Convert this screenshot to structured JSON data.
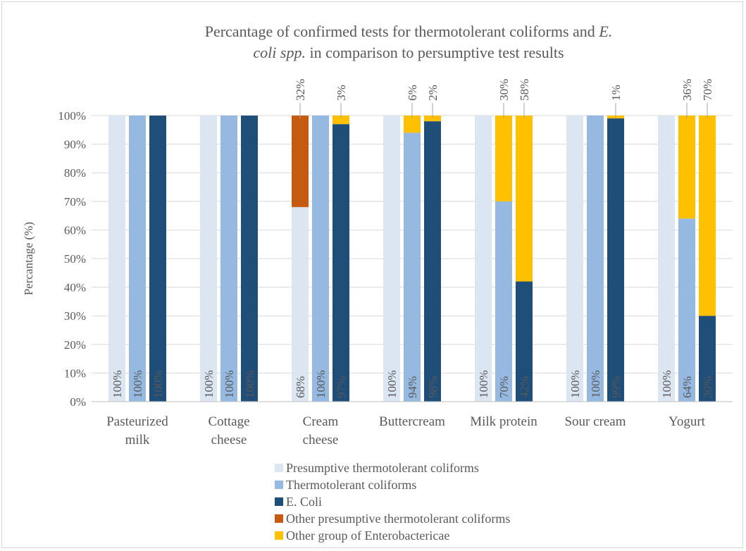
{
  "chart_data": {
    "type": "bar",
    "title_line1": "Percantage of confirmed tests for thermotolerant coliforms and ",
    "title_line1_italic": "E.",
    "title_line2_italic": "coli spp.",
    "title_line2": "  in comparison to persumptive test results",
    "ylabel": "Percantage (%)",
    "ylim": [
      0,
      100
    ],
    "yticks": [
      0,
      10,
      20,
      30,
      40,
      50,
      60,
      70,
      80,
      90,
      100
    ],
    "ytick_labels": [
      "0%",
      "10%",
      "20%",
      "30%",
      "40%",
      "50%",
      "60%",
      "70%",
      "80%",
      "90%",
      "100%"
    ],
    "categories": [
      [
        "Pasteurized",
        "milk"
      ],
      [
        "Cottage",
        "cheese"
      ],
      [
        "Cream",
        "cheese"
      ],
      [
        "Buttercream"
      ],
      [
        "Milk protein"
      ],
      [
        "Sour cream"
      ],
      [
        "Yogurt"
      ]
    ],
    "legend": [
      {
        "key": "presumptive",
        "label": "Presumptive thermotolerant coliforms",
        "color": "#dce6f2"
      },
      {
        "key": "thermo",
        "label": "Thermotolerant coliforms",
        "color": "#95b9e0"
      },
      {
        "key": "ecoli",
        "label": "E. Coli",
        "color": "#1f4e79"
      },
      {
        "key": "other_presumptive",
        "label": "Other presumptive thermotolerant coliforms",
        "color": "#c55a11"
      },
      {
        "key": "other_entero",
        "label": "Other group of Enterobactericae",
        "color": "#ffc000"
      }
    ],
    "groups": [
      {
        "bars": [
          {
            "segments": [
              {
                "key": "presumptive",
                "value": 100
              }
            ],
            "bottom_label": "100%",
            "top_label": ""
          },
          {
            "segments": [
              {
                "key": "thermo",
                "value": 100
              }
            ],
            "bottom_label": "100%",
            "top_label": ""
          },
          {
            "segments": [
              {
                "key": "ecoli",
                "value": 100
              }
            ],
            "bottom_label": "100%",
            "top_label": ""
          }
        ]
      },
      {
        "bars": [
          {
            "segments": [
              {
                "key": "presumptive",
                "value": 100
              }
            ],
            "bottom_label": "100%",
            "top_label": ""
          },
          {
            "segments": [
              {
                "key": "thermo",
                "value": 100
              }
            ],
            "bottom_label": "100%",
            "top_label": ""
          },
          {
            "segments": [
              {
                "key": "ecoli",
                "value": 100
              }
            ],
            "bottom_label": "100%",
            "top_label": ""
          }
        ]
      },
      {
        "bars": [
          {
            "segments": [
              {
                "key": "presumptive",
                "value": 68
              },
              {
                "key": "other_presumptive",
                "value": 32
              }
            ],
            "bottom_label": "68%",
            "top_label": "32%"
          },
          {
            "segments": [
              {
                "key": "thermo",
                "value": 100
              }
            ],
            "bottom_label": "100%",
            "top_label": ""
          },
          {
            "segments": [
              {
                "key": "ecoli",
                "value": 97
              },
              {
                "key": "other_entero",
                "value": 3
              }
            ],
            "bottom_label": "97%",
            "top_label": "3%"
          }
        ]
      },
      {
        "bars": [
          {
            "segments": [
              {
                "key": "presumptive",
                "value": 100
              }
            ],
            "bottom_label": "100%",
            "top_label": ""
          },
          {
            "segments": [
              {
                "key": "thermo",
                "value": 94
              },
              {
                "key": "other_entero",
                "value": 6
              }
            ],
            "bottom_label": "94%",
            "top_label": "6%"
          },
          {
            "segments": [
              {
                "key": "ecoli",
                "value": 98
              },
              {
                "key": "other_entero",
                "value": 2
              }
            ],
            "bottom_label": "98%",
            "top_label": "2%"
          }
        ]
      },
      {
        "bars": [
          {
            "segments": [
              {
                "key": "presumptive",
                "value": 100
              }
            ],
            "bottom_label": "100%",
            "top_label": ""
          },
          {
            "segments": [
              {
                "key": "thermo",
                "value": 70
              },
              {
                "key": "other_entero",
                "value": 30
              }
            ],
            "bottom_label": "70%",
            "top_label": "30%"
          },
          {
            "segments": [
              {
                "key": "ecoli",
                "value": 42
              },
              {
                "key": "other_entero",
                "value": 58
              }
            ],
            "bottom_label": "42%",
            "top_label": "58%"
          }
        ]
      },
      {
        "bars": [
          {
            "segments": [
              {
                "key": "presumptive",
                "value": 100
              }
            ],
            "bottom_label": "100%",
            "top_label": ""
          },
          {
            "segments": [
              {
                "key": "thermo",
                "value": 100
              }
            ],
            "bottom_label": "100%",
            "top_label": ""
          },
          {
            "segments": [
              {
                "key": "ecoli",
                "value": 99
              },
              {
                "key": "other_entero",
                "value": 1
              }
            ],
            "bottom_label": "99%",
            "top_label": "1%"
          }
        ]
      },
      {
        "bars": [
          {
            "segments": [
              {
                "key": "presumptive",
                "value": 100
              }
            ],
            "bottom_label": "100%",
            "top_label": ""
          },
          {
            "segments": [
              {
                "key": "thermo",
                "value": 64
              },
              {
                "key": "other_entero",
                "value": 36
              }
            ],
            "bottom_label": "64%",
            "top_label": "36%"
          },
          {
            "segments": [
              {
                "key": "ecoli",
                "value": 30
              },
              {
                "key": "other_entero",
                "value": 70
              }
            ],
            "bottom_label": "30%",
            "top_label": "70%"
          }
        ]
      }
    ]
  }
}
